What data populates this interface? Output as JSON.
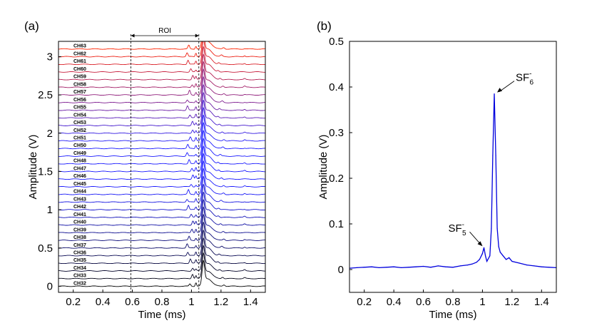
{
  "chart_data": [
    {
      "type": "line",
      "panel_label": "(a)",
      "xlabel": "Time (ms)",
      "ylabel": "Amplitude (V)",
      "xlim": [
        0.1,
        1.5
      ],
      "ylim": [
        -0.08,
        3.2
      ],
      "xticks": [
        "0.2",
        "0.4",
        "0.6",
        "0.8",
        "1",
        "1.2",
        "1.4"
      ],
      "yticks": [
        "0",
        "0.5",
        "1",
        "1.5",
        "2",
        "2.5",
        "3"
      ],
      "roi": {
        "label": "ROI",
        "start": 0.59,
        "end": 1.05
      },
      "offset_per_channel": 0.1,
      "color_low": "#000000",
      "color_mid": "#1a1aff",
      "color_high": "#ff2200",
      "main_peak_time": 1.08,
      "channels": [
        "CH32",
        "CH33",
        "CH34",
        "CH35",
        "CH36",
        "CH37",
        "CH38",
        "CH39",
        "CH40",
        "CH41",
        "CH42",
        "CH43",
        "CH44",
        "CH45",
        "CH46",
        "CH47",
        "CH48",
        "CH49",
        "CH50",
        "CH51",
        "CH52",
        "CH53",
        "CH54",
        "CH55",
        "CH56",
        "CH57",
        "CH58",
        "CH59",
        "CH60",
        "CH61",
        "CH62",
        "CH63"
      ]
    },
    {
      "type": "line",
      "panel_label": "(b)",
      "xlabel": "Time (ms)",
      "ylabel": "Amplitude (V)",
      "xlim": [
        0.1,
        1.5
      ],
      "ylim": [
        -0.05,
        0.5
      ],
      "xticks": [
        "0.2",
        "0.4",
        "0.6",
        "0.8",
        "1",
        "1.2",
        "1.4"
      ],
      "yticks": [
        "0",
        "0.1",
        "0.2",
        "0.3",
        "0.4",
        "0.5"
      ],
      "line_color": "#0000dd",
      "x": [
        0.1,
        0.15,
        0.2,
        0.25,
        0.3,
        0.35,
        0.4,
        0.45,
        0.5,
        0.55,
        0.6,
        0.65,
        0.7,
        0.75,
        0.8,
        0.85,
        0.9,
        0.93,
        0.96,
        0.98,
        1.0,
        1.01,
        1.02,
        1.03,
        1.05,
        1.06,
        1.07,
        1.08,
        1.09,
        1.1,
        1.11,
        1.12,
        1.14,
        1.16,
        1.18,
        1.2,
        1.25,
        1.3,
        1.35,
        1.4,
        1.45,
        1.5
      ],
      "y": [
        0.003,
        0.004,
        0.005,
        0.006,
        0.004,
        0.005,
        0.006,
        0.004,
        0.005,
        0.006,
        0.007,
        0.005,
        0.008,
        0.006,
        0.005,
        0.008,
        0.01,
        0.012,
        0.016,
        0.022,
        0.035,
        0.048,
        0.03,
        0.018,
        0.03,
        0.09,
        0.25,
        0.385,
        0.25,
        0.09,
        0.05,
        0.038,
        0.03,
        0.022,
        0.026,
        0.018,
        0.014,
        0.01,
        0.008,
        0.006,
        0.005,
        0.004
      ],
      "annotations": [
        {
          "text": "SF",
          "sup": "-",
          "sub": "6",
          "x": 1.08,
          "y": 0.385
        },
        {
          "text": "SF",
          "sup": "-",
          "sub": "5",
          "x": 1.01,
          "y": 0.045
        }
      ]
    }
  ]
}
